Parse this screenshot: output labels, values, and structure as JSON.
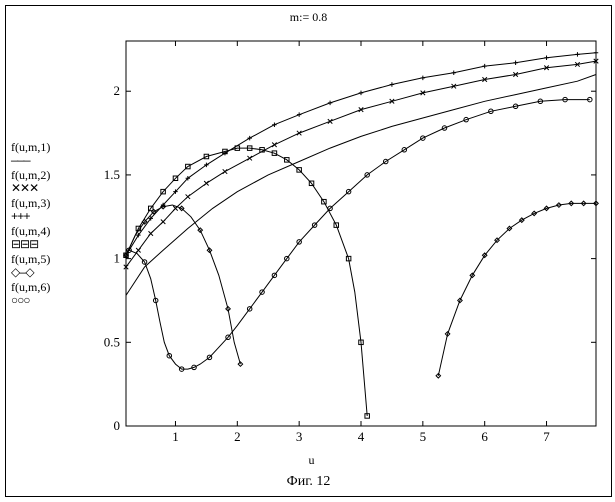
{
  "title": "m:= 0.8",
  "xlabel": "u",
  "caption": "Фиг. 12",
  "legend": {
    "items": [
      {
        "label": "f(u,m,1)",
        "sym": "———"
      },
      {
        "label": "f(u,m,2)",
        "sym": "✕✕✕"
      },
      {
        "label": "f(u,m,3)",
        "sym": "+++"
      },
      {
        "label": "f(u,m,4)",
        "sym": "⊟⊟⊟"
      },
      {
        "label": "f(u,m,5)",
        "sym": "◇—◇"
      },
      {
        "label": "f(u,m,6)",
        "sym": "○○○"
      }
    ]
  },
  "chart": {
    "type": "line",
    "xlim": [
      0.2,
      7.8
    ],
    "ylim": [
      0,
      2.3
    ],
    "xticks": [
      1,
      2,
      3,
      4,
      5,
      6,
      7
    ],
    "yticks": [
      0,
      0.5,
      1,
      1.5,
      2
    ],
    "background_color": "#ffffff",
    "axis_color": "#000000",
    "stroke_color": "#000000",
    "stroke_width": 1,
    "marker_size": 4.5,
    "marker_spacing": 0.15,
    "series": [
      {
        "name": "f(u,m,1)",
        "marker": "none",
        "points": [
          [
            0.2,
            0.78
          ],
          [
            0.5,
            0.95
          ],
          [
            0.8,
            1.05
          ],
          [
            1.2,
            1.18
          ],
          [
            1.6,
            1.3
          ],
          [
            2.0,
            1.4
          ],
          [
            2.5,
            1.5
          ],
          [
            3.0,
            1.58
          ],
          [
            3.5,
            1.66
          ],
          [
            4.0,
            1.73
          ],
          [
            4.5,
            1.79
          ],
          [
            5.0,
            1.84
          ],
          [
            5.5,
            1.89
          ],
          [
            6.0,
            1.94
          ],
          [
            6.5,
            1.98
          ],
          [
            7.0,
            2.02
          ],
          [
            7.5,
            2.06
          ],
          [
            7.8,
            2.1
          ]
        ]
      },
      {
        "name": "f(u,m,2)",
        "marker": "x",
        "points": [
          [
            0.2,
            0.95
          ],
          [
            0.4,
            1.05
          ],
          [
            0.6,
            1.15
          ],
          [
            0.8,
            1.22
          ],
          [
            1.0,
            1.3
          ],
          [
            1.2,
            1.37
          ],
          [
            1.5,
            1.45
          ],
          [
            1.8,
            1.52
          ],
          [
            2.2,
            1.6
          ],
          [
            2.6,
            1.68
          ],
          [
            3.0,
            1.75
          ],
          [
            3.5,
            1.82
          ],
          [
            4.0,
            1.89
          ],
          [
            4.5,
            1.94
          ],
          [
            5.0,
            1.99
          ],
          [
            5.5,
            2.03
          ],
          [
            6.0,
            2.07
          ],
          [
            6.5,
            2.1
          ],
          [
            7.0,
            2.14
          ],
          [
            7.5,
            2.16
          ],
          [
            7.8,
            2.18
          ]
        ]
      },
      {
        "name": "f(u,m,3)",
        "marker": "plus",
        "points": [
          [
            0.2,
            1.02
          ],
          [
            0.4,
            1.14
          ],
          [
            0.6,
            1.24
          ],
          [
            0.8,
            1.32
          ],
          [
            1.0,
            1.4
          ],
          [
            1.2,
            1.48
          ],
          [
            1.5,
            1.56
          ],
          [
            1.8,
            1.63
          ],
          [
            2.2,
            1.72
          ],
          [
            2.6,
            1.8
          ],
          [
            3.0,
            1.86
          ],
          [
            3.5,
            1.93
          ],
          [
            4.0,
            1.99
          ],
          [
            4.5,
            2.04
          ],
          [
            5.0,
            2.08
          ],
          [
            5.5,
            2.11
          ],
          [
            6.0,
            2.15
          ],
          [
            6.5,
            2.17
          ],
          [
            7.0,
            2.2
          ],
          [
            7.5,
            2.22
          ],
          [
            7.8,
            2.23
          ]
        ]
      },
      {
        "name": "f(u,m,4)",
        "marker": "square",
        "points": [
          [
            0.2,
            1.02
          ],
          [
            0.4,
            1.18
          ],
          [
            0.6,
            1.3
          ],
          [
            0.8,
            1.4
          ],
          [
            1.0,
            1.48
          ],
          [
            1.2,
            1.55
          ],
          [
            1.5,
            1.61
          ],
          [
            1.8,
            1.64
          ],
          [
            2.0,
            1.66
          ],
          [
            2.2,
            1.66
          ],
          [
            2.4,
            1.65
          ],
          [
            2.6,
            1.63
          ],
          [
            2.8,
            1.59
          ],
          [
            3.0,
            1.53
          ],
          [
            3.2,
            1.45
          ],
          [
            3.4,
            1.34
          ],
          [
            3.6,
            1.2
          ],
          [
            3.8,
            1.0
          ],
          [
            3.9,
            0.8
          ],
          [
            4.0,
            0.5
          ],
          [
            4.1,
            0.06
          ]
        ]
      },
      {
        "name": "f(u,m,5)",
        "marker": "diamond",
        "points": [
          [
            0.2,
            1.02
          ],
          [
            0.35,
            1.14
          ],
          [
            0.5,
            1.22
          ],
          [
            0.65,
            1.28
          ],
          [
            0.8,
            1.31
          ],
          [
            0.95,
            1.32
          ],
          [
            1.1,
            1.3
          ],
          [
            1.25,
            1.25
          ],
          [
            1.4,
            1.17
          ],
          [
            1.55,
            1.05
          ],
          [
            1.7,
            0.9
          ],
          [
            1.85,
            0.7
          ],
          [
            1.95,
            0.5
          ],
          [
            2.05,
            0.37
          ]
        ],
        "points2": [
          [
            5.25,
            0.3
          ],
          [
            5.4,
            0.55
          ],
          [
            5.6,
            0.75
          ],
          [
            5.8,
            0.9
          ],
          [
            6.0,
            1.02
          ],
          [
            6.2,
            1.11
          ],
          [
            6.4,
            1.18
          ],
          [
            6.6,
            1.23
          ],
          [
            6.8,
            1.27
          ],
          [
            7.0,
            1.3
          ],
          [
            7.2,
            1.32
          ],
          [
            7.4,
            1.33
          ],
          [
            7.6,
            1.33
          ],
          [
            7.8,
            1.33
          ]
        ]
      },
      {
        "name": "f(u,m,6)",
        "marker": "circle",
        "points": [
          [
            0.25,
            1.05
          ],
          [
            0.38,
            1.03
          ],
          [
            0.5,
            0.98
          ],
          [
            0.6,
            0.88
          ],
          [
            0.68,
            0.75
          ],
          [
            0.75,
            0.62
          ],
          [
            0.82,
            0.5
          ],
          [
            0.9,
            0.42
          ],
          [
            1.0,
            0.37
          ],
          [
            1.1,
            0.34
          ],
          [
            1.2,
            0.34
          ],
          [
            1.3,
            0.35
          ],
          [
            1.4,
            0.37
          ],
          [
            1.55,
            0.41
          ],
          [
            1.7,
            0.47
          ],
          [
            1.85,
            0.53
          ],
          [
            2.0,
            0.6
          ],
          [
            2.2,
            0.7
          ],
          [
            2.4,
            0.8
          ],
          [
            2.6,
            0.9
          ],
          [
            2.8,
            1.0
          ],
          [
            3.0,
            1.1
          ],
          [
            3.25,
            1.2
          ],
          [
            3.5,
            1.3
          ],
          [
            3.8,
            1.4
          ],
          [
            4.1,
            1.5
          ],
          [
            4.4,
            1.58
          ],
          [
            4.7,
            1.65
          ],
          [
            5.0,
            1.72
          ],
          [
            5.35,
            1.78
          ],
          [
            5.7,
            1.83
          ],
          [
            6.1,
            1.88
          ],
          [
            6.5,
            1.91
          ],
          [
            6.9,
            1.94
          ],
          [
            7.3,
            1.95
          ],
          [
            7.7,
            1.95
          ]
        ]
      }
    ]
  }
}
